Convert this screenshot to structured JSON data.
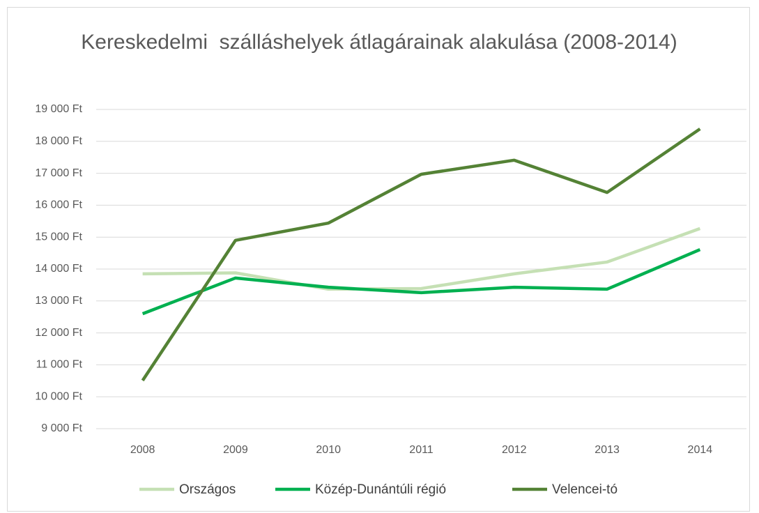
{
  "chart_data": {
    "type": "line",
    "title": "Kereskedelmi  szálláshelyek átlagárainak alakulása (2008-2014)",
    "categories": [
      "2008",
      "2009",
      "2010",
      "2011",
      "2012",
      "2013",
      "2014"
    ],
    "series": [
      {
        "name": "Országos",
        "color": "#c5e0b4",
        "values": [
          13850,
          13880,
          13370,
          13390,
          13850,
          14220,
          15270
        ]
      },
      {
        "name": "Közép-Dunántúli régió",
        "color": "#00b050",
        "values": [
          12600,
          13720,
          13430,
          13260,
          13430,
          13370,
          14610
        ]
      },
      {
        "name": "Velencei-tó",
        "color": "#548235",
        "values": [
          10510,
          14900,
          15440,
          16970,
          17410,
          16400,
          18390
        ]
      }
    ],
    "ylim": [
      9000,
      19000
    ],
    "yticks": [
      {
        "value": 9000,
        "label": "9 000 Ft"
      },
      {
        "value": 10000,
        "label": "10 000 Ft"
      },
      {
        "value": 11000,
        "label": "11 000 Ft"
      },
      {
        "value": 12000,
        "label": "12 000 Ft"
      },
      {
        "value": 13000,
        "label": "13 000 Ft"
      },
      {
        "value": 14000,
        "label": "14 000 Ft"
      },
      {
        "value": 15000,
        "label": "15 000 Ft"
      },
      {
        "value": 16000,
        "label": "16 000 Ft"
      },
      {
        "value": 17000,
        "label": "17 000 Ft"
      },
      {
        "value": 18000,
        "label": "18 000 Ft"
      },
      {
        "value": 19000,
        "label": "19 000 Ft"
      }
    ],
    "grid": true,
    "legend": "bottom"
  }
}
